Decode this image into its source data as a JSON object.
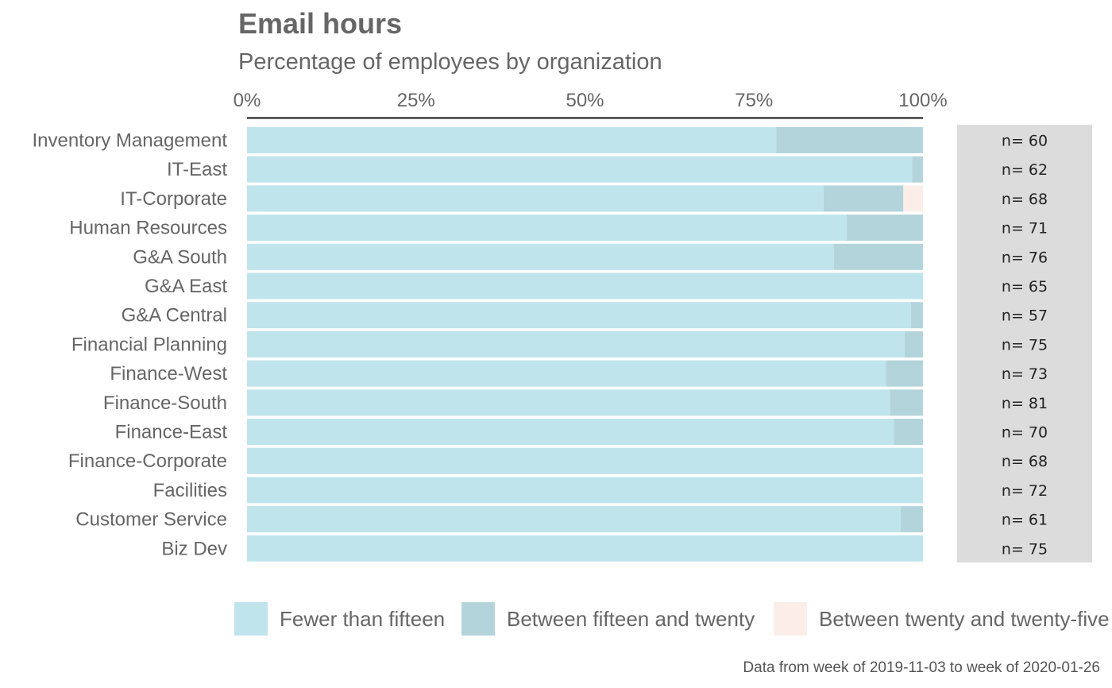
{
  "title": "Email hours",
  "subtitle": "Percentage of employees by organization",
  "caption": "Data from week of 2019-11-03 to week of 2020-01-26",
  "colors": {
    "fewer_than_fifteen": "#c0e4ec",
    "between_fifteen_and_twenty": "#b4d4db",
    "between_twenty_and_twenty_five": "#fbeee9",
    "n_panel": "#dcdcdc",
    "axis_line": "#111111",
    "text": "#666666"
  },
  "chart_data": {
    "type": "bar",
    "orientation": "horizontal",
    "stacked": true,
    "title": "Email hours",
    "subtitle": "Percentage of employees by organization",
    "xlabel": "",
    "ylabel": "",
    "xlim": [
      0,
      1
    ],
    "x_ticks": [
      "0%",
      "25%",
      "50%",
      "75%",
      "100%"
    ],
    "x_axis_position": "top",
    "legend_position": "bottom",
    "grid": false,
    "categories": [
      "Inventory Management",
      "IT-East",
      "IT-Corporate",
      "Human Resources",
      "G&A South",
      "G&A East",
      "G&A Central",
      "Financial Planning",
      "Finance-West",
      "Finance-South",
      "Finance-East",
      "Finance-Corporate",
      "Facilities",
      "Customer Service",
      "Biz Dev"
    ],
    "series": [
      {
        "name": "Fewer than fifteen",
        "values": [
          0.783,
          0.984,
          0.853,
          0.887,
          0.868,
          1.0,
          0.982,
          0.973,
          0.945,
          0.951,
          0.957,
          1.0,
          1.0,
          0.967,
          1.0
        ]
      },
      {
        "name": "Between fifteen and twenty",
        "values": [
          0.217,
          0.016,
          0.118,
          0.113,
          0.132,
          0.0,
          0.018,
          0.027,
          0.055,
          0.049,
          0.043,
          0.0,
          0.0,
          0.033,
          0.0
        ]
      },
      {
        "name": "Between twenty and twenty-five",
        "values": [
          0,
          0,
          0.029,
          0,
          0,
          0,
          0,
          0,
          0,
          0,
          0,
          0,
          0,
          0,
          0
        ]
      }
    ],
    "n_labels": [
      "n= 60",
      "n= 62",
      "n= 68",
      "n= 71",
      "n= 76",
      "n= 65",
      "n= 57",
      "n= 75",
      "n= 73",
      "n= 81",
      "n= 70",
      "n= 68",
      "n= 72",
      "n= 61",
      "n= 75"
    ]
  }
}
